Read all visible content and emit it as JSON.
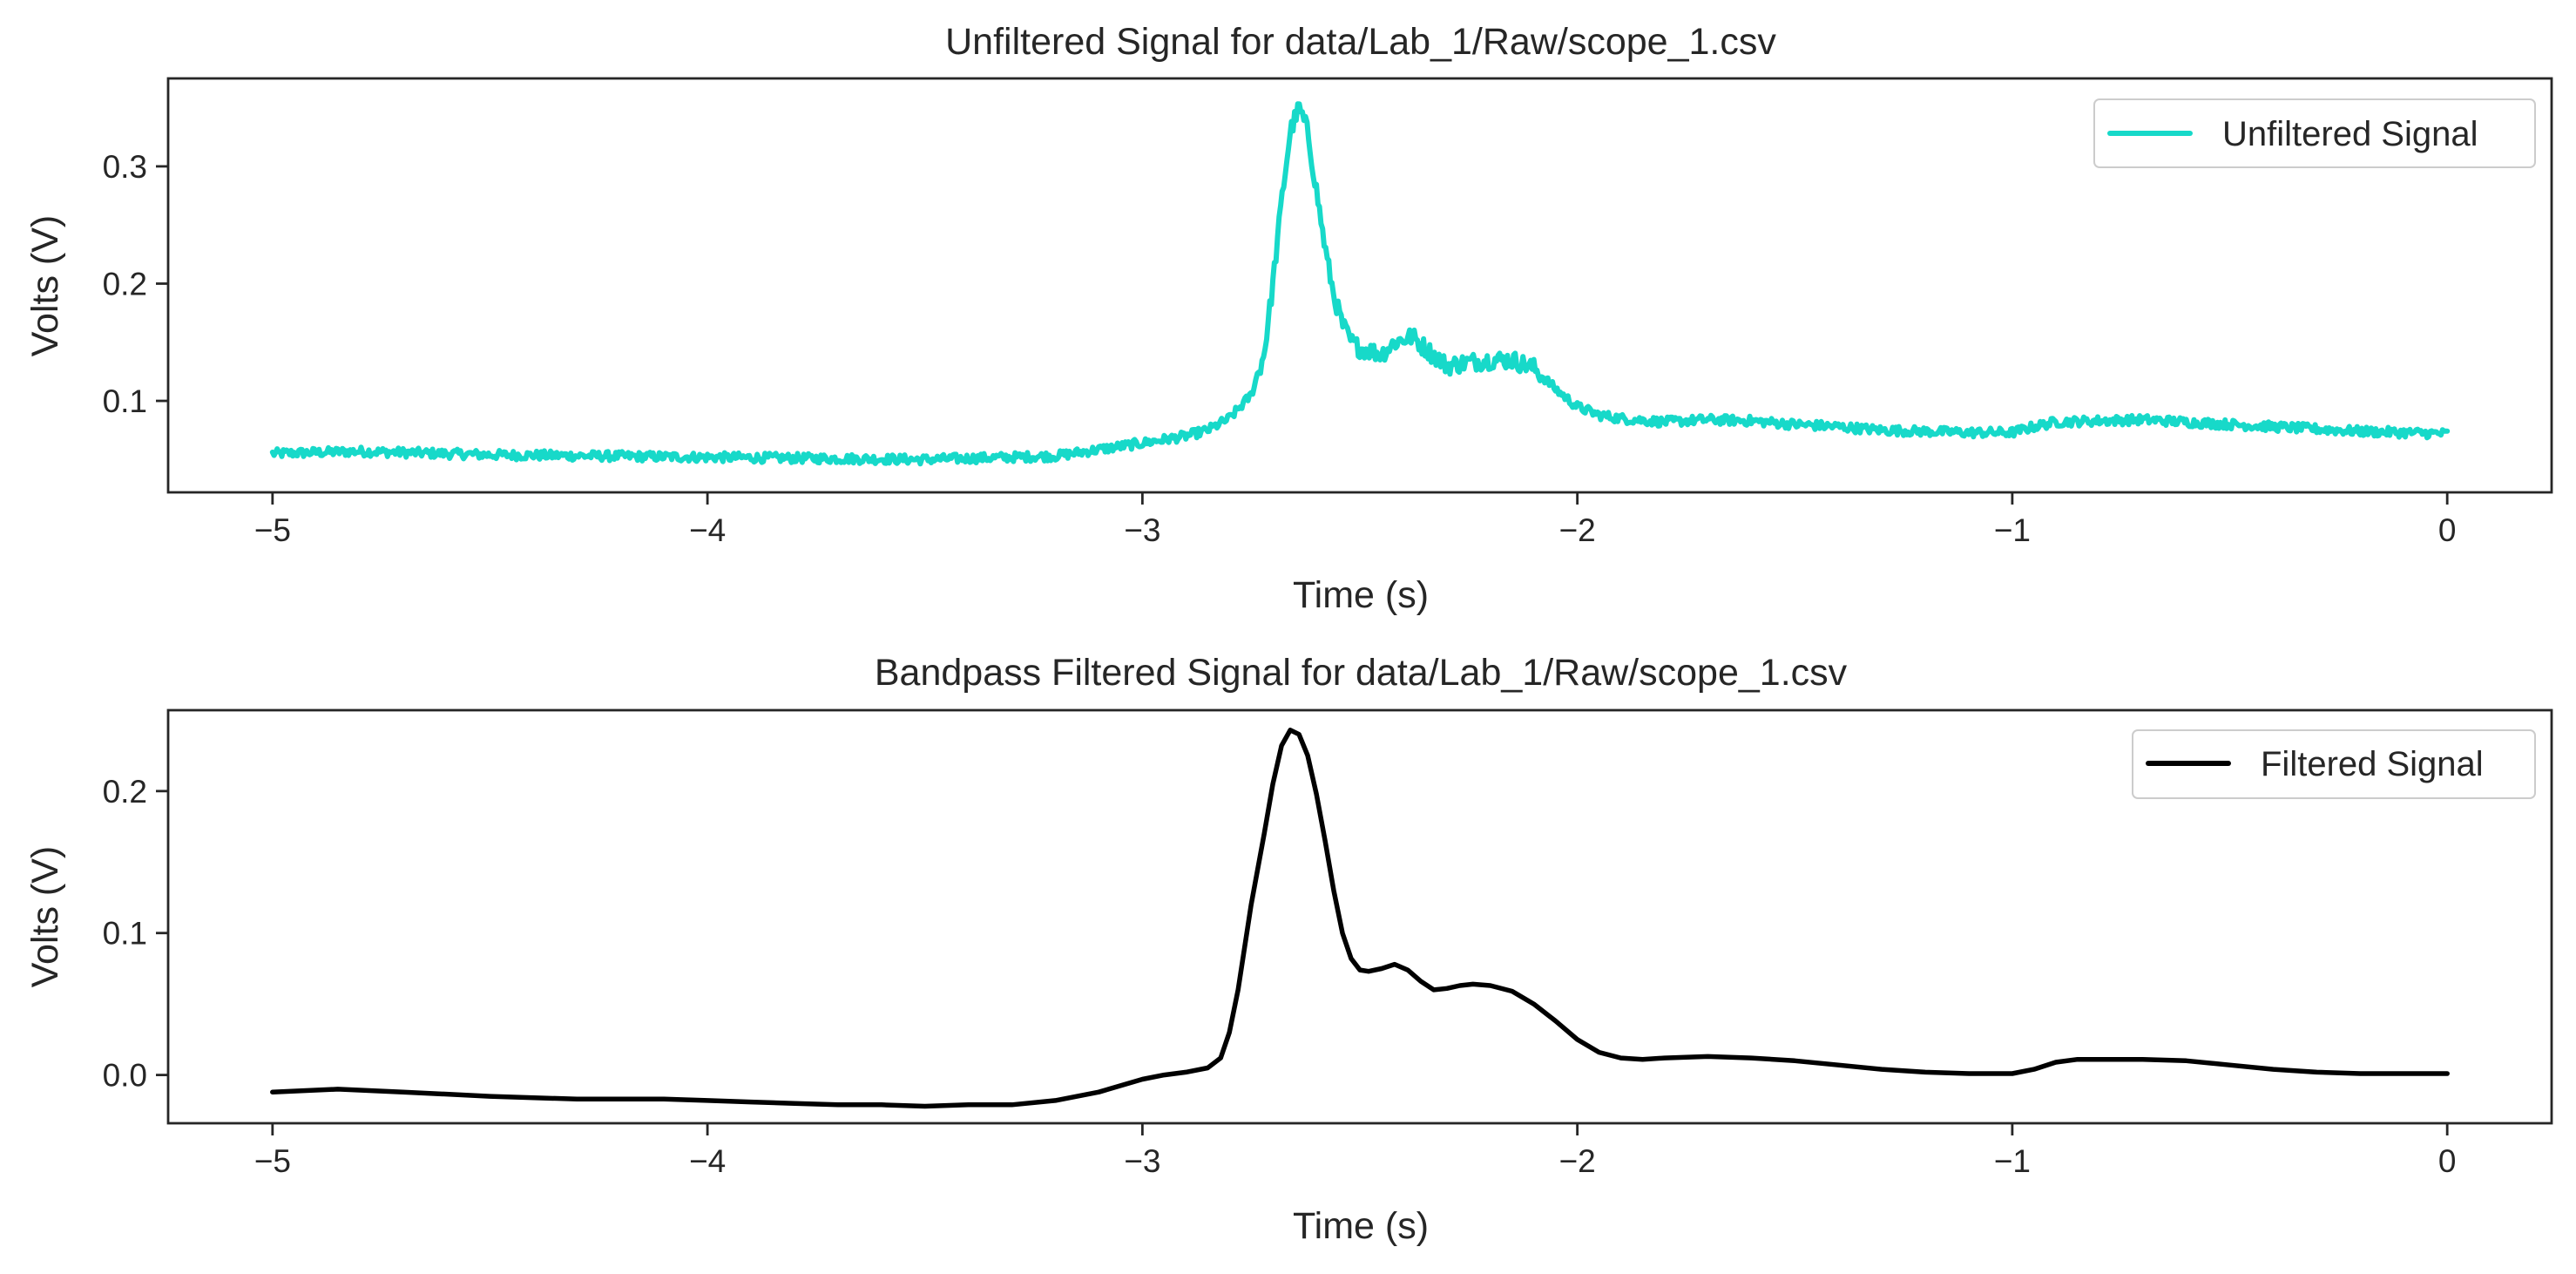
{
  "chart_data": [
    {
      "type": "line",
      "title": "Unfiltered Signal for data/Lab_1/Raw/scope_1.csv",
      "xlabel": "Time (s)",
      "ylabel": "Volts (V)",
      "xlim": [
        -5.24,
        0.24
      ],
      "ylim": [
        0.022,
        0.375
      ],
      "xticks": [
        -5,
        -4,
        -3,
        -2,
        -1,
        0
      ],
      "xtick_labels": [
        "−5",
        "−4",
        "−3",
        "−2",
        "−1",
        "0"
      ],
      "yticks": [
        0.1,
        0.2,
        0.3
      ],
      "ytick_labels": [
        "0.1",
        "0.2",
        "0.3"
      ],
      "legend_position": "top-right",
      "grid": false,
      "series": [
        {
          "name": "Unfiltered Signal",
          "color": "#17d9c9",
          "noisy": true,
          "x": [
            -5.0,
            -4.8,
            -4.5,
            -4.0,
            -3.5,
            -3.2,
            -3.0,
            -2.9,
            -2.85,
            -2.8,
            -2.75,
            -2.72,
            -2.7,
            -2.68,
            -2.66,
            -2.64,
            -2.62,
            -2.6,
            -2.58,
            -2.56,
            -2.54,
            -2.52,
            -2.5,
            -2.45,
            -2.42,
            -2.38,
            -2.35,
            -2.3,
            -2.25,
            -2.2,
            -2.15,
            -2.1,
            -2.05,
            -2.0,
            -1.95,
            -1.9,
            -1.8,
            -1.7,
            -1.6,
            -1.5,
            -1.4,
            -1.3,
            -1.2,
            -1.1,
            -1.0,
            -0.95,
            -0.9,
            -0.8,
            -0.7,
            -0.6,
            -0.5,
            -0.4,
            -0.3,
            -0.2,
            -0.1,
            0.0
          ],
          "y": [
            0.055,
            0.057,
            0.054,
            0.052,
            0.05,
            0.053,
            0.064,
            0.07,
            0.075,
            0.085,
            0.105,
            0.14,
            0.2,
            0.27,
            0.33,
            0.35,
            0.33,
            0.28,
            0.23,
            0.19,
            0.165,
            0.15,
            0.145,
            0.14,
            0.15,
            0.155,
            0.145,
            0.13,
            0.133,
            0.135,
            0.135,
            0.128,
            0.11,
            0.095,
            0.088,
            0.085,
            0.082,
            0.084,
            0.083,
            0.08,
            0.078,
            0.075,
            0.074,
            0.073,
            0.073,
            0.078,
            0.082,
            0.083,
            0.084,
            0.082,
            0.08,
            0.078,
            0.076,
            0.074,
            0.073,
            0.072
          ]
        }
      ]
    },
    {
      "type": "line",
      "title": "Bandpass Filtered Signal for data/Lab_1/Raw/scope_1.csv",
      "xlabel": "Time (s)",
      "ylabel": "Volts (V)",
      "xlim": [
        -5.24,
        0.24
      ],
      "ylim": [
        -0.034,
        0.257
      ],
      "xticks": [
        -5,
        -4,
        -3,
        -2,
        -1,
        0
      ],
      "xtick_labels": [
        "−5",
        "−4",
        "−3",
        "−2",
        "−1",
        "0"
      ],
      "yticks": [
        0.0,
        0.1,
        0.2
      ],
      "ytick_labels": [
        "0.0",
        "0.1",
        "0.2"
      ],
      "legend_position": "top-right",
      "grid": false,
      "series": [
        {
          "name": "Filtered Signal",
          "color": "#000000",
          "noisy": false,
          "x": [
            -5.0,
            -4.85,
            -4.7,
            -4.5,
            -4.3,
            -4.1,
            -4.0,
            -3.9,
            -3.8,
            -3.7,
            -3.6,
            -3.5,
            -3.4,
            -3.3,
            -3.2,
            -3.1,
            -3.0,
            -2.95,
            -2.9,
            -2.85,
            -2.82,
            -2.8,
            -2.78,
            -2.75,
            -2.72,
            -2.7,
            -2.68,
            -2.66,
            -2.64,
            -2.62,
            -2.6,
            -2.58,
            -2.56,
            -2.54,
            -2.52,
            -2.5,
            -2.48,
            -2.45,
            -2.42,
            -2.39,
            -2.36,
            -2.33,
            -2.3,
            -2.27,
            -2.24,
            -2.2,
            -2.15,
            -2.1,
            -2.05,
            -2.0,
            -1.95,
            -1.9,
            -1.85,
            -1.8,
            -1.7,
            -1.6,
            -1.5,
            -1.4,
            -1.3,
            -1.2,
            -1.1,
            -1.0,
            -0.95,
            -0.9,
            -0.85,
            -0.8,
            -0.7,
            -0.6,
            -0.5,
            -0.4,
            -0.3,
            -0.2,
            -0.1,
            0.0
          ],
          "y": [
            -0.012,
            -0.01,
            -0.012,
            -0.015,
            -0.017,
            -0.017,
            -0.018,
            -0.019,
            -0.02,
            -0.021,
            -0.021,
            -0.022,
            -0.021,
            -0.021,
            -0.018,
            -0.012,
            -0.003,
            0.0,
            0.002,
            0.005,
            0.012,
            0.03,
            0.06,
            0.12,
            0.17,
            0.205,
            0.232,
            0.243,
            0.24,
            0.225,
            0.198,
            0.165,
            0.13,
            0.1,
            0.082,
            0.074,
            0.073,
            0.075,
            0.078,
            0.074,
            0.066,
            0.06,
            0.061,
            0.063,
            0.064,
            0.063,
            0.059,
            0.05,
            0.038,
            0.025,
            0.016,
            0.012,
            0.011,
            0.012,
            0.013,
            0.012,
            0.01,
            0.007,
            0.004,
            0.002,
            0.001,
            0.001,
            0.004,
            0.009,
            0.011,
            0.011,
            0.011,
            0.01,
            0.007,
            0.004,
            0.002,
            0.001,
            0.001,
            0.001
          ]
        }
      ]
    }
  ]
}
